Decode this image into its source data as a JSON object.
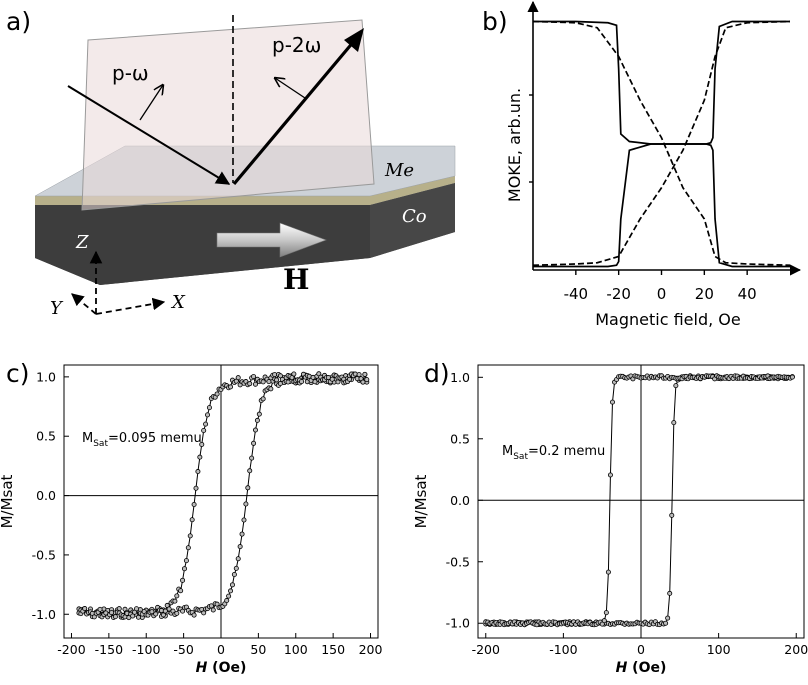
{
  "panels": {
    "a": {
      "label": "a)",
      "beam_in": "p-ω",
      "beam_out": "p-2ω",
      "layer_top": "Me",
      "layer_bottom": "Co",
      "field": "H",
      "axis_z": "Z",
      "axis_y": "Y",
      "axis_x": "X"
    },
    "b": {
      "label": "b)"
    },
    "c": {
      "label": "c)",
      "annotation_main": "M",
      "annotation_sub": "Sat",
      "annotation_rest": "=0.095 memu"
    },
    "d": {
      "label": "d)",
      "annotation_main": "M",
      "annotation_sub": "Sat",
      "annotation_rest": "=0.2 memu"
    }
  },
  "chart_data": [
    {
      "id": "b",
      "type": "line",
      "xlabel": "Magnetic field, Oe",
      "ylabel": "MOKE, arb.un.",
      "xlim": [
        -60,
        60
      ],
      "x_ticks": [
        -40,
        -20,
        0,
        20,
        40
      ],
      "y_tick_labels": false,
      "series": [
        {
          "style": "solid",
          "x": [
            -60,
            -40,
            -25,
            -21,
            -20,
            -19,
            -15,
            -5,
            5,
            15,
            21,
            23,
            24,
            25,
            27,
            33,
            40,
            60
          ],
          "y_descending": [
            0.98,
            0.98,
            0.97,
            0.95,
            0.6,
            0.08,
            0.02,
            0.0,
            0.0,
            0.0,
            0.0,
            -0.01,
            -0.05,
            -0.6,
            -0.95,
            -0.98,
            -0.98,
            -0.98
          ],
          "y_ascending": [
            -0.98,
            -0.98,
            -0.98,
            -0.97,
            -0.94,
            -0.6,
            -0.05,
            0.0,
            0.0,
            0.0,
            0.0,
            0.01,
            0.05,
            0.6,
            0.94,
            0.98,
            0.98,
            0.98
          ]
        },
        {
          "style": "dashed",
          "x": [
            -60,
            -40,
            -30,
            -20,
            -10,
            0,
            10,
            20,
            25,
            30,
            40,
            60
          ],
          "y_ascending": [
            -0.97,
            -0.96,
            -0.95,
            -0.9,
            -0.6,
            -0.35,
            -0.05,
            0.35,
            0.7,
            0.93,
            0.97,
            0.98
          ],
          "y_descending": [
            0.98,
            0.97,
            0.93,
            0.7,
            0.35,
            0.05,
            -0.35,
            -0.6,
            -0.9,
            -0.95,
            -0.96,
            -0.97
          ]
        }
      ]
    },
    {
      "id": "c",
      "type": "scatter",
      "xlabel": "H (Oe)",
      "ylabel": "M/Msat",
      "xlim": [
        -210,
        210
      ],
      "ylim": [
        -1.2,
        1.1
      ],
      "x_ticks": [
        -200,
        -150,
        -100,
        -50,
        0,
        50,
        100,
        150,
        200
      ],
      "y_ticks": [
        -1.0,
        -0.5,
        0.0,
        0.5,
        1.0
      ],
      "coercive_field": 35,
      "loop_width": 18,
      "x_range": [
        -190,
        195
      ]
    },
    {
      "id": "d",
      "type": "scatter",
      "xlabel": "H (Oe)",
      "ylabel": "M/Msat",
      "xlim": [
        -210,
        210
      ],
      "ylim": [
        -1.12,
        1.1
      ],
      "x_ticks": [
        -200,
        -100,
        0,
        100,
        200
      ],
      "y_ticks": [
        -1.0,
        -0.5,
        0.0,
        0.5,
        1.0
      ],
      "coercive_field": 40,
      "loop_width": 3,
      "x_range": [
        -200,
        195
      ]
    }
  ]
}
